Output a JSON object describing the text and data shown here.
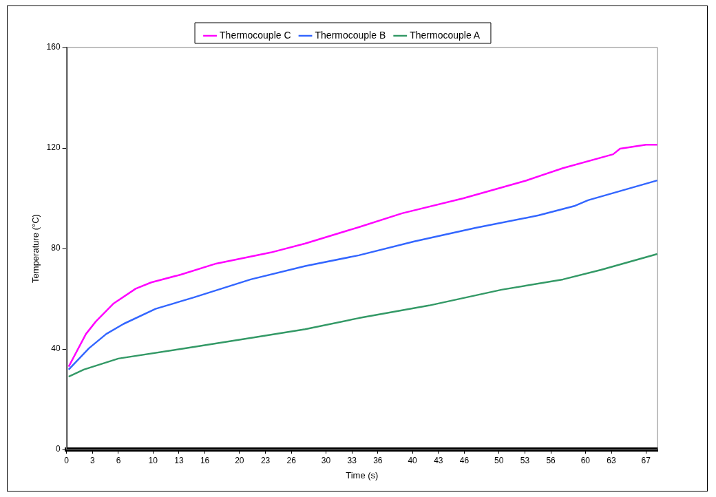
{
  "chart_data": {
    "type": "line",
    "xlabel": "Time (s)",
    "ylabel": "Temperature (°C)",
    "xlim": [
      0,
      68.33
    ],
    "xticks": [
      0,
      3,
      6,
      10,
      13,
      16,
      20,
      23,
      26,
      30,
      33,
      36,
      40,
      43,
      46,
      50,
      53,
      56,
      60,
      63,
      67
    ],
    "ylim": [
      0,
      160
    ],
    "yticks": [
      0,
      40,
      80,
      120,
      160
    ],
    "grid": false,
    "legend": "top",
    "marker": "none",
    "line_style": "solid",
    "series": [
      {
        "name": "Thermocouple C",
        "color": "#ff00ff",
        "x": [
          0.25,
          2.25,
          3.4,
          5.4,
          8,
          9.8,
          13.2,
          17.3,
          23.6,
          27.6,
          33.8,
          38.8,
          45.9,
          53.1,
          57.4,
          63.2,
          64,
          67,
          68.3
        ],
        "values": [
          33,
          46,
          51,
          58,
          64,
          66.5,
          69.6,
          74,
          78.4,
          82,
          88.5,
          94,
          100,
          107,
          112,
          117.5,
          119.7,
          121.3,
          121.3
        ]
      },
      {
        "name": "Thermocouple B",
        "color": "#3366ff",
        "x": [
          0.25,
          2.6,
          4.6,
          6.6,
          10.3,
          14.7,
          21.3,
          27.6,
          33.8,
          40.2,
          47.3,
          54.6,
          58.8,
          60.3,
          68.3
        ],
        "values": [
          31.8,
          40.3,
          46,
          50,
          56,
          60.5,
          67.7,
          73,
          77.3,
          82.8,
          88.2,
          93.2,
          97,
          99.2,
          107.1
        ]
      },
      {
        "name": "Thermocouple A",
        "color": "#339966",
        "x": [
          0.25,
          2,
          6,
          13.2,
          21.9,
          27.6,
          33.8,
          41.9,
          50.3,
          57.4,
          61.8,
          68.3
        ],
        "values": [
          29,
          31.8,
          36.2,
          40,
          44.7,
          47.9,
          52.3,
          57.3,
          63.6,
          67.7,
          71.5,
          77.8
        ]
      }
    ]
  }
}
